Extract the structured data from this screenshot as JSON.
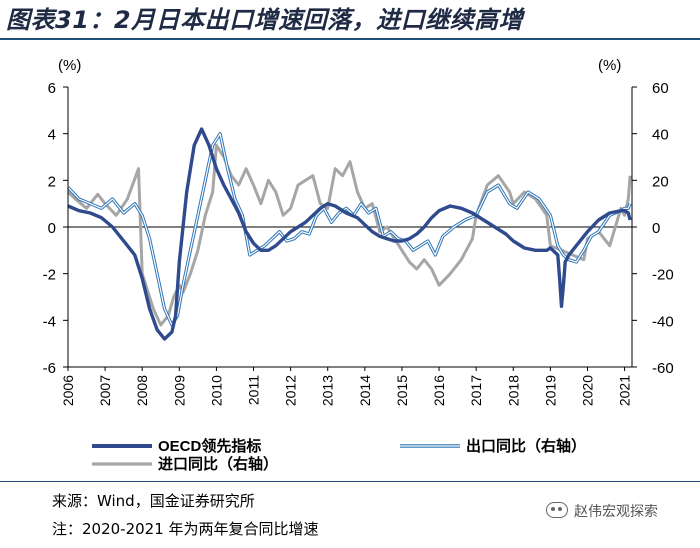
{
  "title": "图表31：2月日本出口增速回落，进口继续高增",
  "source": "来源：Wind，国金证券研究所",
  "note": "注：2020-2021 年为两年复合同比增速",
  "watermark": "赵伟宏观探索",
  "chart_data": {
    "type": "line",
    "left_axis": {
      "unit": "(%)",
      "ylim": [
        -6,
        6
      ],
      "ticks": [
        6,
        4,
        2,
        0,
        -2,
        -4,
        -6
      ]
    },
    "right_axis": {
      "unit": "(%)",
      "ylim": [
        -60,
        60
      ],
      "ticks": [
        60,
        40,
        20,
        0,
        -20,
        -40,
        -60
      ]
    },
    "x_range": [
      2006,
      2021.2
    ],
    "x_tick_labels": [
      "2006",
      "2007",
      "2008",
      "2009",
      "2010",
      "2011",
      "2012",
      "2013",
      "2014",
      "2015",
      "2016",
      "2017",
      "2018",
      "2019",
      "2020",
      "2021"
    ],
    "legend": [
      "OECD领先指标",
      "出口同比（右轴）",
      "进口同比（右轴）"
    ],
    "series": [
      {
        "name": "进口同比（右轴）",
        "axis": "right",
        "color": "#a6a6a6",
        "x": [
          2006.0,
          2006.2,
          2006.5,
          2006.8,
          2007.0,
          2007.3,
          2007.6,
          2007.9,
          2008.0,
          2008.3,
          2008.5,
          2008.7,
          2008.85,
          2009.0,
          2009.1,
          2009.3,
          2009.5,
          2009.7,
          2009.9,
          2010.0,
          2010.2,
          2010.4,
          2010.6,
          2010.8,
          2011.0,
          2011.2,
          2011.4,
          2011.6,
          2011.8,
          2012.0,
          2012.2,
          2012.4,
          2012.6,
          2012.8,
          2013.0,
          2013.2,
          2013.4,
          2013.6,
          2013.8,
          2014.0,
          2014.2,
          2014.4,
          2014.6,
          2014.8,
          2015.0,
          2015.2,
          2015.4,
          2015.6,
          2015.8,
          2016.0,
          2016.3,
          2016.6,
          2016.9,
          2017.0,
          2017.3,
          2017.6,
          2017.9,
          2018.0,
          2018.3,
          2018.6,
          2018.9,
          2019.0,
          2019.3,
          2019.6,
          2019.9,
          2020.0,
          2020.3,
          2020.6,
          2020.9,
          2021.0,
          2021.1,
          2021.15
        ],
        "y": [
          15,
          12,
          8,
          14,
          10,
          5,
          12,
          25,
          -20,
          -35,
          -42,
          -38,
          -30,
          -25,
          -28,
          -20,
          -10,
          5,
          15,
          35,
          30,
          22,
          18,
          25,
          18,
          10,
          20,
          15,
          5,
          8,
          18,
          20,
          22,
          10,
          8,
          25,
          22,
          28,
          15,
          8,
          10,
          -2,
          0,
          -5,
          -10,
          -15,
          -18,
          -14,
          -18,
          -25,
          -20,
          -14,
          -5,
          5,
          18,
          22,
          15,
          10,
          15,
          12,
          5,
          -8,
          -10,
          -12,
          -14,
          -5,
          -2,
          -8,
          8,
          5,
          12,
          22
        ]
      },
      {
        "name": "出口同比（右轴）",
        "axis": "right",
        "color": "#2e75b6",
        "outline": true,
        "x": [
          2006.0,
          2006.3,
          2006.6,
          2006.9,
          2007.2,
          2007.5,
          2007.8,
          2008.0,
          2008.2,
          2008.4,
          2008.6,
          2008.8,
          2008.95,
          2009.1,
          2009.3,
          2009.5,
          2009.7,
          2009.9,
          2010.1,
          2010.3,
          2010.5,
          2010.7,
          2010.9,
          2011.1,
          2011.3,
          2011.5,
          2011.7,
          2011.9,
          2012.1,
          2012.3,
          2012.5,
          2012.7,
          2012.9,
          2013.1,
          2013.3,
          2013.5,
          2013.7,
          2013.9,
          2014.1,
          2014.3,
          2014.5,
          2014.7,
          2014.9,
          2015.1,
          2015.3,
          2015.5,
          2015.7,
          2015.9,
          2016.1,
          2016.4,
          2016.7,
          2017.0,
          2017.3,
          2017.6,
          2017.9,
          2018.1,
          2018.4,
          2018.7,
          2019.0,
          2019.2,
          2019.35,
          2019.5,
          2019.7,
          2019.9,
          2020.1,
          2020.3,
          2020.6,
          2020.9,
          2021.0,
          2021.1,
          2021.15
        ],
        "y": [
          17,
          12,
          10,
          8,
          12,
          6,
          10,
          5,
          -5,
          -20,
          -35,
          -42,
          -38,
          -25,
          -10,
          5,
          20,
          35,
          40,
          25,
          12,
          5,
          -12,
          -10,
          -8,
          -5,
          -2,
          -6,
          -5,
          -2,
          -3,
          5,
          8,
          2,
          6,
          8,
          5,
          10,
          6,
          8,
          -4,
          -2,
          -5,
          -6,
          -10,
          -8,
          -6,
          -12,
          -4,
          0,
          3,
          5,
          15,
          18,
          10,
          8,
          15,
          12,
          5,
          -8,
          -12,
          -14,
          -15,
          -10,
          -4,
          -2,
          5,
          7,
          8,
          8,
          10
        ]
      },
      {
        "name": "OECD领先指标",
        "axis": "left",
        "color": "#2f4b8e",
        "x": [
          2006.0,
          2006.3,
          2006.6,
          2006.9,
          2007.2,
          2007.5,
          2007.8,
          2008.0,
          2008.2,
          2008.4,
          2008.6,
          2008.8,
          2008.9,
          2009.0,
          2009.2,
          2009.4,
          2009.6,
          2009.8,
          2010.0,
          2010.2,
          2010.4,
          2010.6,
          2010.8,
          2011.0,
          2011.2,
          2011.4,
          2011.6,
          2011.8,
          2012.0,
          2012.2,
          2012.4,
          2012.6,
          2012.8,
          2013.0,
          2013.2,
          2013.5,
          2013.8,
          2014.0,
          2014.2,
          2014.4,
          2014.6,
          2014.8,
          2015.0,
          2015.2,
          2015.4,
          2015.6,
          2015.8,
          2016.0,
          2016.3,
          2016.6,
          2016.9,
          2017.2,
          2017.5,
          2017.8,
          2018.0,
          2018.3,
          2018.6,
          2018.9,
          2019.0,
          2019.2,
          2019.25,
          2019.3,
          2019.35,
          2019.4,
          2019.5,
          2019.7,
          2019.9,
          2020.0,
          2020.3,
          2020.6,
          2020.9,
          2021.0,
          2021.1,
          2021.15
        ],
        "y": [
          0.9,
          0.7,
          0.6,
          0.4,
          0,
          -0.6,
          -1.2,
          -2.2,
          -3.5,
          -4.4,
          -4.8,
          -4.5,
          -3.8,
          -1.5,
          1.5,
          3.5,
          4.2,
          3.5,
          2.5,
          1.8,
          1.2,
          0.6,
          -0.2,
          -0.7,
          -1.0,
          -1.0,
          -0.8,
          -0.5,
          -0.2,
          0,
          0.2,
          0.5,
          0.8,
          1.0,
          0.9,
          0.6,
          0.4,
          0.1,
          -0.2,
          -0.4,
          -0.5,
          -0.6,
          -0.6,
          -0.5,
          -0.3,
          0,
          0.4,
          0.7,
          0.9,
          0.8,
          0.6,
          0.3,
          0,
          -0.3,
          -0.6,
          -0.9,
          -1.0,
          -1.0,
          -0.9,
          -1.2,
          -2.2,
          -3.4,
          -2.5,
          -1.5,
          -1.2,
          -0.8,
          -0.4,
          -0.2,
          0.3,
          0.6,
          0.7,
          0.7,
          0.6,
          0.3
        ]
      }
    ]
  }
}
